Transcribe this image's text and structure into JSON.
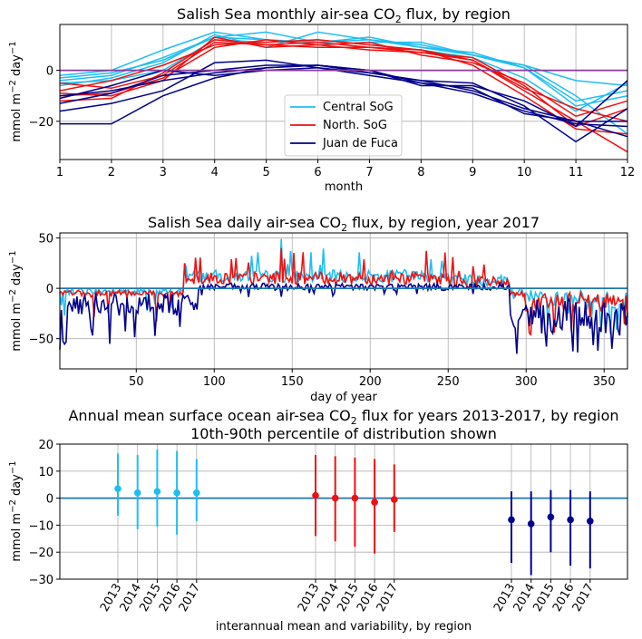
{
  "colors": {
    "central": "#1fbef2",
    "north": "#ee1111",
    "juan": "#00008b",
    "zero_monthly": "#8b3a9b",
    "zero_other": "#1f77b4"
  },
  "chart_data": [
    {
      "type": "line",
      "title": "Salish Sea monthly air-sea CO",
      "title_sub": "2",
      "title_tail": " flux, by region",
      "xlabel": "month",
      "ylabel": "mmol m",
      "ylabel_sup1": "−2",
      "ylabel_mid": " day",
      "ylabel_sup2": "−1",
      "xlim": [
        1,
        12
      ],
      "ylim": [
        -35,
        18
      ],
      "xticks": [
        1,
        2,
        3,
        4,
        5,
        6,
        7,
        8,
        9,
        10,
        11,
        12
      ],
      "yticks": [
        -20,
        0
      ],
      "hline": 0,
      "legend_position": "lower-center",
      "legend": [
        "Central SoG",
        "North. SoG",
        "Juan de Fuca"
      ],
      "x": [
        1,
        2,
        3,
        4,
        5,
        6,
        7,
        8,
        9,
        10,
        11,
        12
      ],
      "series": [
        {
          "group": "central",
          "values": [
            -2,
            0,
            8,
            15,
            12,
            10,
            11,
            11,
            6,
            2,
            -4,
            -6
          ]
        },
        {
          "group": "central",
          "values": [
            -4,
            -2,
            5,
            13,
            15,
            11,
            13,
            9,
            7,
            1,
            -14,
            -10
          ]
        },
        {
          "group": "central",
          "values": [
            -6,
            -3,
            3,
            14,
            9,
            15,
            12,
            10,
            6,
            2,
            -10,
            -25
          ]
        },
        {
          "group": "central",
          "values": [
            -5,
            -4,
            0,
            12,
            11,
            12,
            10,
            8,
            5,
            -3,
            -16,
            -5
          ]
        },
        {
          "group": "central",
          "values": [
            -3,
            -1,
            4,
            13,
            12,
            11,
            12,
            9,
            6,
            1,
            -12,
            -8
          ]
        },
        {
          "group": "north",
          "values": [
            -5,
            -7,
            -2,
            11,
            10,
            11,
            9,
            7,
            5,
            -6,
            -22,
            -15
          ]
        },
        {
          "group": "north",
          "values": [
            -8,
            -4,
            2,
            10,
            11,
            12,
            10,
            8,
            4,
            -8,
            -20,
            -32
          ]
        },
        {
          "group": "north",
          "values": [
            -9,
            -10,
            -4,
            13,
            9,
            10,
            11,
            6,
            3,
            -5,
            -18,
            -12
          ]
        },
        {
          "group": "north",
          "values": [
            -10,
            -9,
            -3,
            9,
            12,
            10,
            8,
            7,
            4,
            -7,
            -15,
            -20
          ]
        },
        {
          "group": "north",
          "values": [
            -12,
            -11,
            -1,
            12,
            10,
            9,
            9,
            8,
            2,
            -10,
            -23,
            -25
          ]
        },
        {
          "group": "juan",
          "values": [
            -21,
            -21,
            -10,
            -3,
            1,
            2,
            0,
            -5,
            -7,
            -17,
            -20,
            -20
          ]
        },
        {
          "group": "juan",
          "values": [
            -16,
            -13,
            -8,
            3,
            4,
            1,
            -1,
            -4,
            -5,
            -14,
            -28,
            -15
          ]
        },
        {
          "group": "juan",
          "values": [
            -13,
            -9,
            -2,
            0,
            2,
            2,
            0,
            -6,
            -6,
            -12,
            -22,
            -4
          ]
        },
        {
          "group": "juan",
          "values": [
            -10,
            -8,
            -4,
            -1,
            1,
            2,
            -1,
            -4,
            -8,
            -15,
            -20,
            -26
          ]
        },
        {
          "group": "juan",
          "values": [
            -11,
            -6,
            0,
            -2,
            0,
            1,
            -2,
            -5,
            -9,
            -16,
            -21,
            -22
          ]
        }
      ]
    },
    {
      "type": "line",
      "title": "Salish Sea daily air-sea CO",
      "title_sub": "2",
      "title_tail": " flux, by region, year 2017",
      "xlabel": "day of year",
      "ylabel": "mmol m",
      "ylabel_sup1": "−2",
      "ylabel_mid": " day",
      "ylabel_sup2": "−1",
      "xlim": [
        1,
        365
      ],
      "ylim": [
        -80,
        55
      ],
      "xticks": [
        50,
        100,
        150,
        200,
        250,
        300,
        350
      ],
      "yticks": [
        -50,
        0,
        50
      ],
      "hline": 0,
      "series_groups": [
        "central",
        "north",
        "juan"
      ]
    },
    {
      "type": "scatter",
      "title": "Annual mean surface ocean air-sea CO",
      "title_sub": "2",
      "title_tail": " flux for years 2013-2017, by region",
      "title_line2": "10th-90th percentile of distribution shown",
      "xlabel": "interannual mean and variability, by region",
      "ylabel": "mmol m",
      "ylabel_sup1": "−2",
      "ylabel_mid": " day",
      "ylabel_sup2": "−1",
      "ylim": [
        -30,
        20
      ],
      "yticks": [
        -30,
        -20,
        -10,
        0,
        10,
        20
      ],
      "hline": 0,
      "tick_labels": [
        "2013",
        "2014",
        "2015",
        "2016",
        "2017",
        "2013",
        "2014",
        "2015",
        "2016",
        "2017",
        "2013",
        "2014",
        "2015",
        "2016",
        "2017"
      ],
      "groups": [
        {
          "group": "central",
          "mean": [
            3.5,
            2,
            2.5,
            2,
            2
          ],
          "p10": [
            -6.5,
            -11.5,
            -10.5,
            -13.5,
            -8.5
          ],
          "p90": [
            16.5,
            16,
            18,
            17.5,
            14.5
          ]
        },
        {
          "group": "north",
          "mean": [
            1,
            0,
            0,
            -1.5,
            -0.5
          ],
          "p10": [
            -14,
            -16,
            -18,
            -20.5,
            -12.5
          ],
          "p90": [
            16,
            15.5,
            15,
            14.5,
            12.5
          ]
        },
        {
          "group": "juan",
          "mean": [
            -8,
            -9.5,
            -7,
            -8,
            -8.5
          ],
          "p10": [
            -24,
            -28.5,
            -20,
            -25,
            -26
          ],
          "p90": [
            2.5,
            2.5,
            3,
            3,
            2.5
          ]
        }
      ]
    }
  ]
}
